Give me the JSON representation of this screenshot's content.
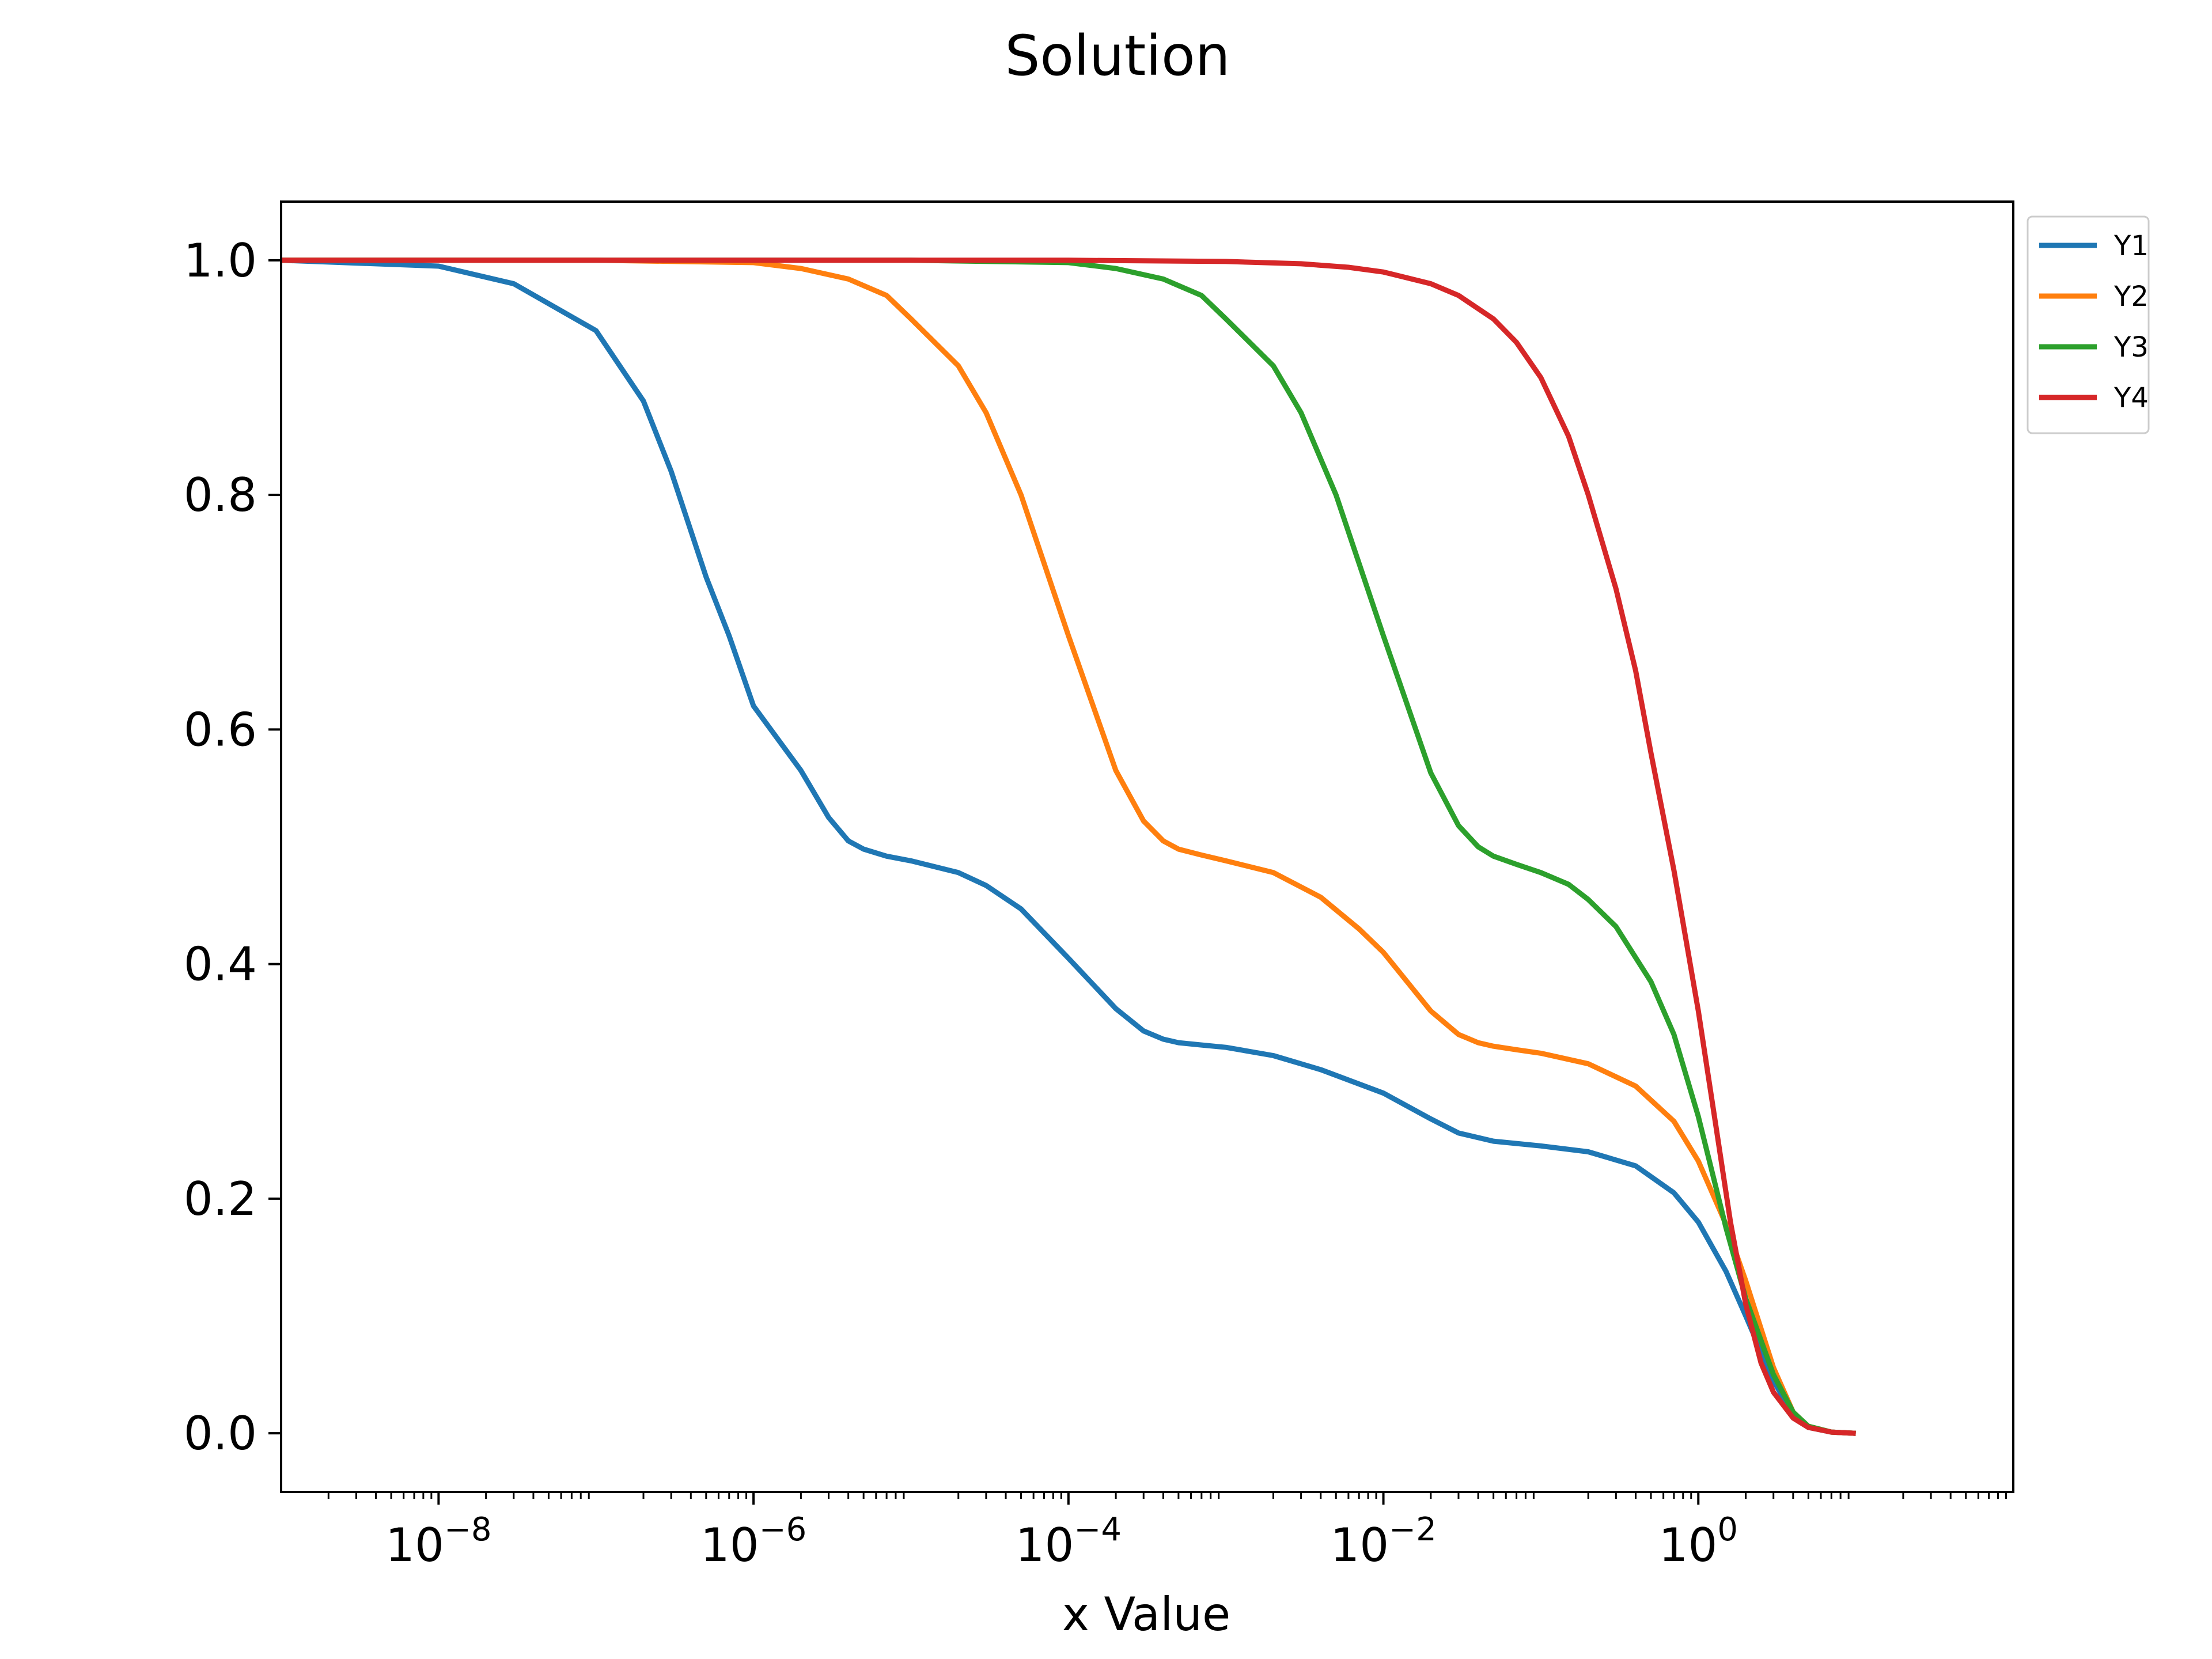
{
  "chart_data": {
    "type": "line",
    "title": "Solution",
    "xlabel": "x Value",
    "ylabel": "",
    "x_scale": "log",
    "xlim": [
      1e-09,
      100
    ],
    "ylim": [
      -0.05,
      1.05
    ],
    "x_ticks": [
      1e-08,
      1e-06,
      0.0001,
      0.01,
      1
    ],
    "x_tick_labels": [
      {
        "base": "10",
        "exp": "−8"
      },
      {
        "base": "10",
        "exp": "−6"
      },
      {
        "base": "10",
        "exp": "−4"
      },
      {
        "base": "10",
        "exp": "−2"
      },
      {
        "base": "10",
        "exp": "0"
      }
    ],
    "y_ticks": [
      0.0,
      0.2,
      0.4,
      0.6,
      0.8,
      1.0
    ],
    "y_tick_labels": [
      "0.0",
      "0.2",
      "0.4",
      "0.6",
      "0.8",
      "1.0"
    ],
    "grid": false,
    "legend_position": "outside-top-right",
    "series": [
      {
        "name": "Y1",
        "color": "#1f77b4",
        "x": [
          1e-09,
          1e-08,
          3e-08,
          1e-07,
          2e-07,
          3e-07,
          5e-07,
          7e-07,
          1e-06,
          2e-06,
          3e-06,
          4e-06,
          5e-06,
          7e-06,
          1e-05,
          2e-05,
          3e-05,
          5e-05,
          0.0001,
          0.0002,
          0.0003,
          0.0004,
          0.0005,
          0.0007,
          0.001,
          0.002,
          0.004,
          0.01,
          0.02,
          0.03,
          0.05,
          0.1,
          0.2,
          0.4,
          0.7,
          1,
          1.5,
          2,
          3,
          4,
          5,
          7,
          10
        ],
        "y": [
          1.0,
          0.995,
          0.98,
          0.94,
          0.88,
          0.82,
          0.73,
          0.68,
          0.62,
          0.565,
          0.525,
          0.505,
          0.498,
          0.492,
          0.488,
          0.478,
          0.467,
          0.447,
          0.405,
          0.362,
          0.343,
          0.336,
          0.333,
          0.331,
          0.329,
          0.322,
          0.31,
          0.29,
          0.268,
          0.256,
          0.249,
          0.245,
          0.24,
          0.228,
          0.205,
          0.18,
          0.138,
          0.1,
          0.045,
          0.015,
          0.005,
          0.001,
          0.0
        ]
      },
      {
        "name": "Y2",
        "color": "#ff7f0e",
        "x": [
          1e-09,
          1e-07,
          1e-06,
          2e-06,
          4e-06,
          7e-06,
          1e-05,
          2e-05,
          3e-05,
          5e-05,
          0.0001,
          0.0002,
          0.0003,
          0.0004,
          0.0005,
          0.0007,
          0.001,
          0.002,
          0.004,
          0.007,
          0.01,
          0.02,
          0.03,
          0.04,
          0.05,
          0.07,
          0.1,
          0.2,
          0.4,
          0.7,
          1,
          1.5,
          2,
          3,
          4,
          5,
          7,
          10
        ],
        "y": [
          1.0,
          1.0,
          0.998,
          0.993,
          0.984,
          0.97,
          0.95,
          0.91,
          0.87,
          0.8,
          0.68,
          0.565,
          0.522,
          0.505,
          0.498,
          0.493,
          0.488,
          0.478,
          0.457,
          0.43,
          0.41,
          0.36,
          0.34,
          0.333,
          0.33,
          0.327,
          0.324,
          0.315,
          0.296,
          0.266,
          0.232,
          0.178,
          0.13,
          0.056,
          0.018,
          0.006,
          0.001,
          0.0
        ]
      },
      {
        "name": "Y3",
        "color": "#2ca02c",
        "x": [
          1e-09,
          1e-05,
          0.0001,
          0.0002,
          0.0004,
          0.0007,
          0.001,
          0.002,
          0.003,
          0.005,
          0.01,
          0.02,
          0.03,
          0.04,
          0.05,
          0.07,
          0.1,
          0.15,
          0.2,
          0.3,
          0.5,
          0.7,
          1,
          1.5,
          2,
          3,
          4,
          5,
          7,
          10
        ],
        "y": [
          1.0,
          1.0,
          0.998,
          0.993,
          0.984,
          0.97,
          0.95,
          0.91,
          0.87,
          0.8,
          0.68,
          0.563,
          0.518,
          0.5,
          0.492,
          0.485,
          0.478,
          0.468,
          0.455,
          0.432,
          0.385,
          0.34,
          0.27,
          0.175,
          0.115,
          0.05,
          0.018,
          0.006,
          0.001,
          0.0
        ]
      },
      {
        "name": "Y4",
        "color": "#d62728",
        "x": [
          1e-09,
          0.0001,
          0.001,
          0.003,
          0.006,
          0.01,
          0.02,
          0.03,
          0.05,
          0.07,
          0.1,
          0.15,
          0.2,
          0.3,
          0.4,
          0.5,
          0.7,
          1,
          1.3,
          1.6,
          2,
          2.5,
          3,
          4,
          5,
          7,
          10
        ],
        "y": [
          1.0,
          1.0,
          0.999,
          0.997,
          0.994,
          0.99,
          0.98,
          0.97,
          0.95,
          0.93,
          0.9,
          0.85,
          0.8,
          0.72,
          0.65,
          0.58,
          0.48,
          0.36,
          0.26,
          0.18,
          0.11,
          0.06,
          0.035,
          0.013,
          0.005,
          0.001,
          0.0
        ]
      }
    ]
  }
}
